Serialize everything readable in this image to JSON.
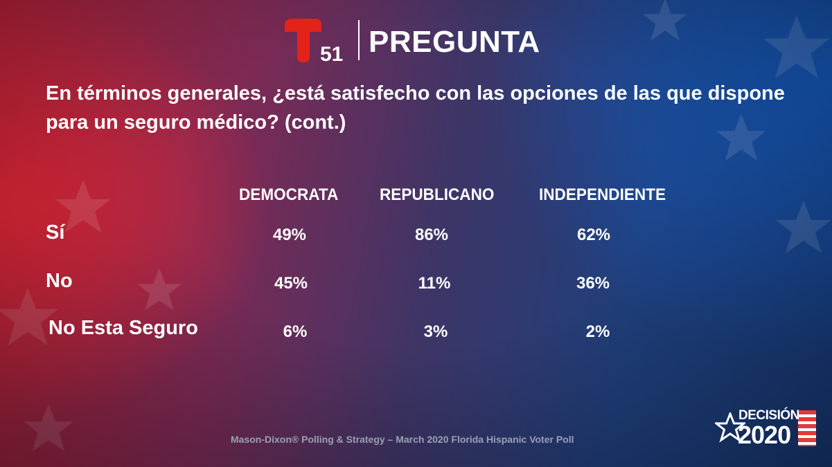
{
  "header": {
    "logo_text": "51",
    "title": "PREGUNTA"
  },
  "question": "En términos generales, ¿está satisfecho con las opciones de las que dispone para un seguro médico? (cont.)",
  "chart_data": {
    "type": "table",
    "columns": [
      "DEMOCRATA",
      "REPUBLICANO",
      "INDEPENDIENTE"
    ],
    "rows": [
      {
        "label": "Sí",
        "values": [
          "49%",
          "86%",
          "62%"
        ]
      },
      {
        "label": "No",
        "values": [
          "45%",
          "11%",
          "36%"
        ]
      },
      {
        "label": "No Esta Seguro",
        "values": [
          "6%",
          "3%",
          "2%"
        ]
      }
    ]
  },
  "footer": "Mason-Dixon® Polling & Strategy – March 2020 Florida Hispanic Voter Poll",
  "badge": {
    "top": "DECISIÓN",
    "year": "2020"
  },
  "colors": {
    "brand_red": "#e2231a",
    "footer_gray": "#9aa0b4"
  }
}
